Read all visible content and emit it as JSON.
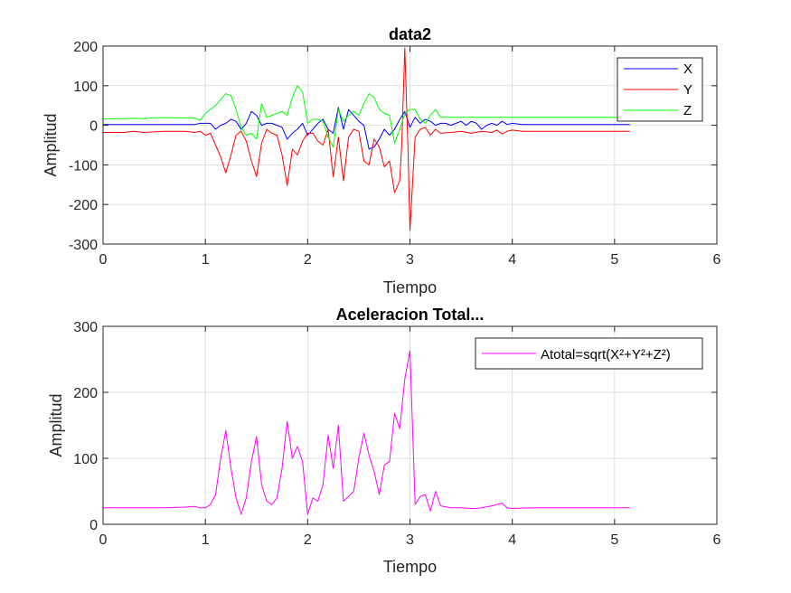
{
  "chart_data": [
    {
      "type": "line",
      "title": "data2",
      "xlabel": "Tiempo",
      "ylabel": "Amplitud",
      "xlim": [
        0,
        6
      ],
      "ylim": [
        -300,
        200
      ],
      "xticks": [
        "0",
        "1",
        "2",
        "3",
        "4",
        "5",
        "6"
      ],
      "yticks": [
        "-300",
        "-200",
        "-100",
        "0",
        "100",
        "200"
      ],
      "grid": true,
      "legend_position": "top-right",
      "series": [
        {
          "name": "X",
          "color": "#0000FF",
          "points": [
            [
              0,
              2
            ],
            [
              0.1,
              2
            ],
            [
              0.2,
              2
            ],
            [
              0.3,
              2
            ],
            [
              0.4,
              2
            ],
            [
              0.5,
              2
            ],
            [
              0.6,
              2
            ],
            [
              0.7,
              2
            ],
            [
              0.8,
              2
            ],
            [
              0.9,
              2
            ],
            [
              0.95,
              5
            ],
            [
              1.0,
              5
            ],
            [
              1.05,
              5
            ],
            [
              1.1,
              -10
            ],
            [
              1.15,
              0
            ],
            [
              1.2,
              5
            ],
            [
              1.25,
              15
            ],
            [
              1.3,
              10
            ],
            [
              1.35,
              -10
            ],
            [
              1.4,
              5
            ],
            [
              1.45,
              35
            ],
            [
              1.5,
              25
            ],
            [
              1.55,
              0
            ],
            [
              1.6,
              5
            ],
            [
              1.65,
              5
            ],
            [
              1.7,
              0
            ],
            [
              1.75,
              -5
            ],
            [
              1.8,
              -35
            ],
            [
              1.85,
              -20
            ],
            [
              1.9,
              -10
            ],
            [
              1.95,
              5
            ],
            [
              2.0,
              -25
            ],
            [
              2.05,
              -10
            ],
            [
              2.1,
              5
            ],
            [
              2.15,
              15
            ],
            [
              2.2,
              -10
            ],
            [
              2.25,
              -20
            ],
            [
              2.3,
              45
            ],
            [
              2.35,
              -10
            ],
            [
              2.4,
              40
            ],
            [
              2.45,
              25
            ],
            [
              2.5,
              10
            ],
            [
              2.55,
              0
            ],
            [
              2.6,
              -60
            ],
            [
              2.65,
              -55
            ],
            [
              2.7,
              -35
            ],
            [
              2.75,
              -10
            ],
            [
              2.8,
              -25
            ],
            [
              2.85,
              -10
            ],
            [
              2.9,
              15
            ],
            [
              2.95,
              35
            ],
            [
              3.0,
              -5
            ],
            [
              3.05,
              20
            ],
            [
              3.1,
              5
            ],
            [
              3.15,
              15
            ],
            [
              3.2,
              10
            ],
            [
              3.25,
              0
            ],
            [
              3.3,
              5
            ],
            [
              3.35,
              5
            ],
            [
              3.4,
              0
            ],
            [
              3.45,
              5
            ],
            [
              3.5,
              10
            ],
            [
              3.55,
              0
            ],
            [
              3.6,
              10
            ],
            [
              3.65,
              5
            ],
            [
              3.7,
              -10
            ],
            [
              3.75,
              0
            ],
            [
              3.8,
              5
            ],
            [
              3.85,
              0
            ],
            [
              3.9,
              10
            ],
            [
              3.95,
              2
            ],
            [
              4.0,
              5
            ],
            [
              4.1,
              2
            ],
            [
              4.2,
              2
            ],
            [
              4.3,
              2
            ],
            [
              4.5,
              2
            ],
            [
              4.7,
              2
            ],
            [
              4.9,
              2
            ],
            [
              5.15,
              2
            ]
          ]
        },
        {
          "name": "Y",
          "color": "#FF0000",
          "points": [
            [
              0,
              -18
            ],
            [
              0.2,
              -18
            ],
            [
              0.3,
              -15
            ],
            [
              0.4,
              -18
            ],
            [
              0.6,
              -15
            ],
            [
              0.8,
              -15
            ],
            [
              0.9,
              -18
            ],
            [
              0.95,
              -15
            ],
            [
              1.0,
              -25
            ],
            [
              1.05,
              -20
            ],
            [
              1.1,
              -50
            ],
            [
              1.15,
              -80
            ],
            [
              1.2,
              -120
            ],
            [
              1.25,
              -75
            ],
            [
              1.3,
              -25
            ],
            [
              1.35,
              -15
            ],
            [
              1.4,
              -40
            ],
            [
              1.45,
              -90
            ],
            [
              1.5,
              -130
            ],
            [
              1.55,
              -45
            ],
            [
              1.6,
              -10
            ],
            [
              1.65,
              -20
            ],
            [
              1.7,
              -25
            ],
            [
              1.75,
              -75
            ],
            [
              1.8,
              -152
            ],
            [
              1.85,
              -60
            ],
            [
              1.9,
              -75
            ],
            [
              1.95,
              -40
            ],
            [
              2.0,
              -20
            ],
            [
              2.05,
              -20
            ],
            [
              2.1,
              -40
            ],
            [
              2.15,
              -50
            ],
            [
              2.2,
              -10
            ],
            [
              2.25,
              -130
            ],
            [
              2.3,
              -30
            ],
            [
              2.35,
              -140
            ],
            [
              2.4,
              -30
            ],
            [
              2.45,
              -10
            ],
            [
              2.5,
              -15
            ],
            [
              2.55,
              -90
            ],
            [
              2.6,
              -100
            ],
            [
              2.65,
              -35
            ],
            [
              2.7,
              -55
            ],
            [
              2.75,
              -105
            ],
            [
              2.8,
              -90
            ],
            [
              2.85,
              -170
            ],
            [
              2.9,
              -140
            ],
            [
              2.92,
              -50
            ],
            [
              2.95,
              195
            ],
            [
              2.98,
              -50
            ],
            [
              3.0,
              -265
            ],
            [
              3.05,
              -30
            ],
            [
              3.1,
              -10
            ],
            [
              3.15,
              -5
            ],
            [
              3.2,
              -25
            ],
            [
              3.25,
              -10
            ],
            [
              3.3,
              -20
            ],
            [
              3.4,
              -18
            ],
            [
              3.5,
              -15
            ],
            [
              3.6,
              -20
            ],
            [
              3.7,
              -15
            ],
            [
              3.8,
              -18
            ],
            [
              3.85,
              -12
            ],
            [
              3.9,
              -22
            ],
            [
              3.95,
              -15
            ],
            [
              4.0,
              -12
            ],
            [
              4.1,
              -15
            ],
            [
              4.3,
              -15
            ],
            [
              4.5,
              -15
            ],
            [
              4.7,
              -15
            ],
            [
              4.9,
              -15
            ],
            [
              5.15,
              -15
            ]
          ]
        },
        {
          "name": "Z",
          "color": "#00FF00",
          "points": [
            [
              0,
              16
            ],
            [
              0.2,
              17
            ],
            [
              0.3,
              18
            ],
            [
              0.4,
              17
            ],
            [
              0.5,
              19
            ],
            [
              0.7,
              19
            ],
            [
              0.9,
              18
            ],
            [
              0.95,
              12
            ],
            [
              1.0,
              30
            ],
            [
              1.05,
              40
            ],
            [
              1.1,
              50
            ],
            [
              1.15,
              65
            ],
            [
              1.2,
              80
            ],
            [
              1.25,
              75
            ],
            [
              1.3,
              40
            ],
            [
              1.35,
              -5
            ],
            [
              1.4,
              -25
            ],
            [
              1.45,
              -20
            ],
            [
              1.5,
              -35
            ],
            [
              1.55,
              55
            ],
            [
              1.6,
              20
            ],
            [
              1.65,
              25
            ],
            [
              1.7,
              30
            ],
            [
              1.75,
              35
            ],
            [
              1.8,
              25
            ],
            [
              1.85,
              70
            ],
            [
              1.9,
              100
            ],
            [
              1.95,
              85
            ],
            [
              2.0,
              5
            ],
            [
              2.05,
              15
            ],
            [
              2.1,
              15
            ],
            [
              2.15,
              10
            ],
            [
              2.2,
              -30
            ],
            [
              2.25,
              -55
            ],
            [
              2.3,
              40
            ],
            [
              2.35,
              10
            ],
            [
              2.4,
              25
            ],
            [
              2.45,
              35
            ],
            [
              2.5,
              25
            ],
            [
              2.55,
              55
            ],
            [
              2.6,
              80
            ],
            [
              2.65,
              70
            ],
            [
              2.7,
              40
            ],
            [
              2.75,
              30
            ],
            [
              2.8,
              25
            ],
            [
              2.85,
              -45
            ],
            [
              2.9,
              -10
            ],
            [
              2.95,
              30
            ],
            [
              3.0,
              40
            ],
            [
              3.05,
              40
            ],
            [
              3.1,
              15
            ],
            [
              3.15,
              5
            ],
            [
              3.2,
              25
            ],
            [
              3.25,
              40
            ],
            [
              3.3,
              20
            ],
            [
              3.4,
              20
            ],
            [
              3.6,
              20
            ],
            [
              3.8,
              20
            ],
            [
              4.0,
              20
            ],
            [
              4.5,
              20
            ],
            [
              5.0,
              20
            ],
            [
              5.15,
              20
            ]
          ]
        }
      ]
    },
    {
      "type": "line",
      "title": "Aceleracion Total...",
      "xlabel": "Tiempo",
      "ylabel": "Amplitud",
      "xlim": [
        0,
        6
      ],
      "ylim": [
        0,
        300
      ],
      "xticks": [
        "0",
        "1",
        "2",
        "3",
        "4",
        "5",
        "6"
      ],
      "yticks": [
        "0",
        "100",
        "200",
        "300"
      ],
      "grid": true,
      "legend_position": "top-right",
      "series": [
        {
          "name": "Atotal=sqrt(X²+Y²+Z²)",
          "color": "#FF00FF",
          "points": [
            [
              0,
              25
            ],
            [
              0.2,
              25
            ],
            [
              0.4,
              25
            ],
            [
              0.6,
              25
            ],
            [
              0.8,
              26
            ],
            [
              0.9,
              27
            ],
            [
              0.95,
              25
            ],
            [
              1.0,
              25
            ],
            [
              1.05,
              30
            ],
            [
              1.1,
              45
            ],
            [
              1.15,
              100
            ],
            [
              1.2,
              142
            ],
            [
              1.25,
              85
            ],
            [
              1.3,
              40
            ],
            [
              1.35,
              15
            ],
            [
              1.4,
              40
            ],
            [
              1.45,
              95
            ],
            [
              1.5,
              133
            ],
            [
              1.55,
              60
            ],
            [
              1.6,
              35
            ],
            [
              1.65,
              30
            ],
            [
              1.7,
              40
            ],
            [
              1.75,
              85
            ],
            [
              1.8,
              156
            ],
            [
              1.85,
              100
            ],
            [
              1.9,
              118
            ],
            [
              1.95,
              95
            ],
            [
              2.0,
              15
            ],
            [
              2.05,
              40
            ],
            [
              2.1,
              35
            ],
            [
              2.15,
              60
            ],
            [
              2.2,
              135
            ],
            [
              2.25,
              85
            ],
            [
              2.3,
              150
            ],
            [
              2.35,
              35
            ],
            [
              2.4,
              42
            ],
            [
              2.45,
              50
            ],
            [
              2.5,
              100
            ],
            [
              2.55,
              138
            ],
            [
              2.6,
              105
            ],
            [
              2.65,
              80
            ],
            [
              2.7,
              45
            ],
            [
              2.75,
              90
            ],
            [
              2.8,
              95
            ],
            [
              2.85,
              168
            ],
            [
              2.9,
              145
            ],
            [
              2.95,
              220
            ],
            [
              3.0,
              263
            ],
            [
              3.05,
              30
            ],
            [
              3.1,
              42
            ],
            [
              3.15,
              45
            ],
            [
              3.2,
              20
            ],
            [
              3.25,
              50
            ],
            [
              3.3,
              28
            ],
            [
              3.4,
              25
            ],
            [
              3.5,
              25
            ],
            [
              3.6,
              24
            ],
            [
              3.65,
              24
            ],
            [
              3.7,
              25
            ],
            [
              3.8,
              28
            ],
            [
              3.9,
              32
            ],
            [
              3.95,
              25
            ],
            [
              4.0,
              24
            ],
            [
              4.2,
              25
            ],
            [
              4.5,
              25
            ],
            [
              4.8,
              25
            ],
            [
              5.15,
              25
            ]
          ]
        }
      ]
    }
  ]
}
